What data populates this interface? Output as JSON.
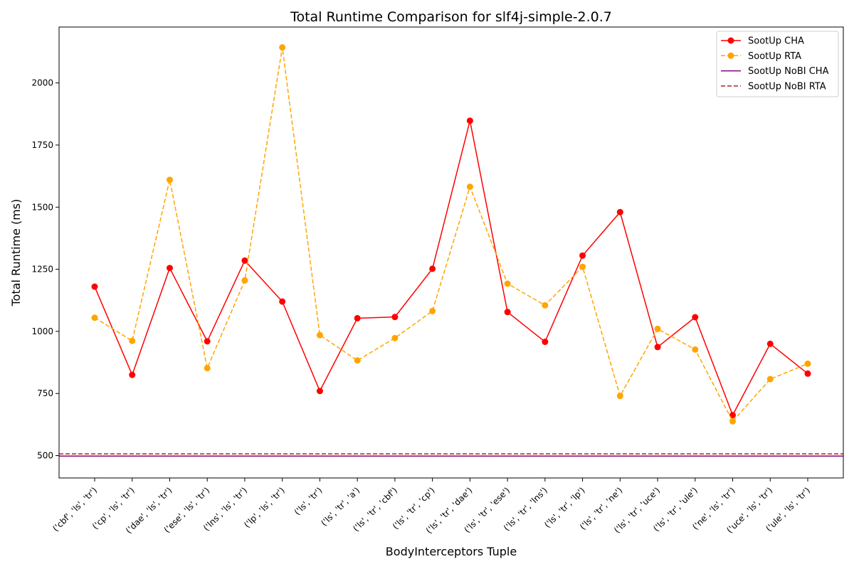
{
  "chart_data": {
    "type": "line",
    "title": "Total Runtime Comparison for slf4j-simple-2.0.7",
    "xlabel": "BodyInterceptors Tuple",
    "ylabel": "Total Runtime (ms)",
    "ylim": [
      410,
      2225
    ],
    "yticks": [
      500,
      750,
      1000,
      1250,
      1500,
      1750,
      2000
    ],
    "grid": false,
    "legend_position": "top-right",
    "categories": [
      "('cbf', 'ls', 'tr')",
      "('cp', 'ls', 'tr')",
      "('dae', 'ls', 'tr')",
      "('ese', 'ls', 'tr')",
      "('lns', 'ls', 'tr')",
      "('lp', 'ls', 'tr')",
      "('ls', 'tr')",
      "('ls', 'tr', 'a')",
      "('ls', 'tr', 'cbf')",
      "('ls', 'tr', 'cp')",
      "('ls', 'tr', 'dae')",
      "('ls', 'tr', 'ese')",
      "('ls', 'tr', 'lns')",
      "('ls', 'tr', 'lp')",
      "('ls', 'tr', 'ne')",
      "('ls', 'tr', 'uce')",
      "('ls', 'tr', 'ule')",
      "('ne', 'ls', 'tr')",
      "('uce', 'ls', 'tr')",
      "('ule', 'ls', 'tr')"
    ],
    "series": [
      {
        "name": "SootUp CHA",
        "color": "#ff0000",
        "style": "solid-marker",
        "values": [
          1180,
          825,
          1255,
          960,
          1285,
          1120,
          760,
          1053,
          1058,
          1252,
          1848,
          1078,
          958,
          1305,
          1480,
          937,
          1057,
          663,
          950,
          830
        ]
      },
      {
        "name": "SootUp RTA",
        "color": "#ffa500",
        "style": "dashed-marker",
        "values": [
          1055,
          962,
          1610,
          852,
          1205,
          2143,
          985,
          883,
          973,
          1082,
          1582,
          1192,
          1105,
          1260,
          740,
          1010,
          927,
          638,
          808,
          870
        ]
      },
      {
        "name": "SootUp NoBI CHA",
        "color": "#800080",
        "style": "solid-hline",
        "value": 498
      },
      {
        "name": "SootUp NoBI RTA",
        "color": "#b22222",
        "style": "dashed-hline",
        "value": 507
      }
    ]
  }
}
